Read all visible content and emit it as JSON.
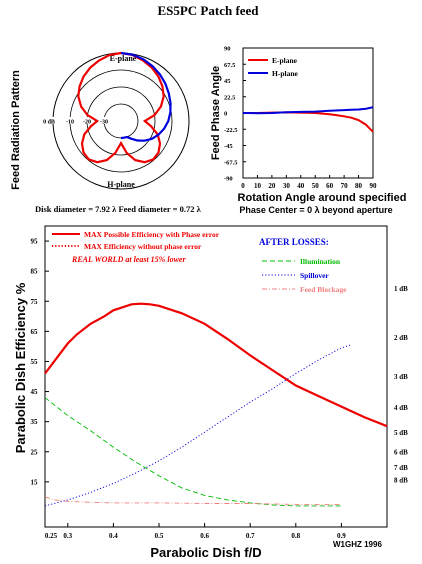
{
  "page": {
    "title": "ES5PC Patch feed",
    "credit": "W1GHZ 1996",
    "dish_line": "Disk diameter = 7.92 λ Feed diameter = 0.72 λ"
  },
  "colors": {
    "red": "#ee0000",
    "blue": "#0000dd",
    "green": "#00bb00",
    "pink": "#f08080",
    "black": "#000000"
  },
  "chart_data": [
    {
      "type": "polar",
      "ylabel": "Feed Radiation Pattern",
      "ring_labels": [
        "0 dB",
        "-10",
        "-20",
        "-30"
      ],
      "ring_levels_db": [
        0,
        -10,
        -20,
        -30
      ],
      "series": [
        {
          "name": "E-plane",
          "color": "red",
          "points": [
            [
              0,
              0
            ],
            [
              10,
              -0.6
            ],
            [
              20,
              -2.1
            ],
            [
              30,
              -3.8
            ],
            [
              40,
              -5.8
            ],
            [
              50,
              -8.2
            ],
            [
              60,
              -11.0
            ],
            [
              70,
              -15.0
            ],
            [
              80,
              -20.0
            ],
            [
              90,
              -26.0
            ],
            [
              100,
              -22.0
            ],
            [
              110,
              -17.0
            ],
            [
              120,
              -13.5
            ],
            [
              130,
              -11.2
            ],
            [
              140,
              -10.5
            ],
            [
              150,
              -12.0
            ],
            [
              160,
              -15.5
            ],
            [
              170,
              -21.0
            ],
            [
              180,
              -27.0
            ]
          ]
        },
        {
          "name": "H-plane",
          "color": "blue",
          "points": [
            [
              0,
              0
            ],
            [
              10,
              -0.4
            ],
            [
              20,
              -1.4
            ],
            [
              30,
              -2.8
            ],
            [
              40,
              -4.3
            ],
            [
              50,
              -5.9
            ],
            [
              60,
              -7.5
            ],
            [
              70,
              -9.0
            ],
            [
              80,
              -10.5
            ],
            [
              90,
              -12.2
            ],
            [
              100,
              -14.2
            ],
            [
              110,
              -16.5
            ],
            [
              120,
              -19.0
            ],
            [
              130,
              -22.0
            ],
            [
              140,
              -25.0
            ],
            [
              150,
              -28.0
            ],
            [
              160,
              -30.0
            ],
            [
              170,
              -30.0
            ],
            [
              180,
              -30.0
            ]
          ]
        }
      ]
    },
    {
      "type": "line",
      "ylabel": "Feed Phase Angle",
      "xlabel": "Rotation Angle around specified",
      "xlabel2": "Phase Center = 0 λ beyond aperture",
      "xlim": [
        0,
        90
      ],
      "ylim": [
        -90,
        90
      ],
      "xticks": [
        0,
        10,
        20,
        30,
        40,
        50,
        60,
        70,
        80,
        90
      ],
      "yticks": [
        90,
        67.5,
        45,
        22.5,
        0,
        -22.5,
        -45,
        -67.5,
        -90
      ],
      "yticklabels": [
        "90",
        "67.5",
        "45",
        "22.5",
        "0",
        "-22.5",
        "-45",
        "-67.5",
        "-90"
      ],
      "legend": [
        "E-plane",
        "H-plane"
      ],
      "series": [
        {
          "name": "E-plane",
          "color": "red",
          "points": [
            [
              0,
              0
            ],
            [
              10,
              0
            ],
            [
              20,
              0.5
            ],
            [
              30,
              0.8
            ],
            [
              40,
              0.5
            ],
            [
              50,
              0
            ],
            [
              55,
              -0.8
            ],
            [
              60,
              -1.8
            ],
            [
              65,
              -3
            ],
            [
              70,
              -4.5
            ],
            [
              75,
              -6.5
            ],
            [
              80,
              -10
            ],
            [
              85,
              -16
            ],
            [
              88,
              -22
            ],
            [
              90,
              -26
            ]
          ]
        },
        {
          "name": "H-plane",
          "color": "blue",
          "points": [
            [
              0,
              0
            ],
            [
              10,
              -0.3
            ],
            [
              20,
              0
            ],
            [
              30,
              1
            ],
            [
              40,
              1.5
            ],
            [
              50,
              2
            ],
            [
              60,
              3
            ],
            [
              70,
              4
            ],
            [
              75,
              4.5
            ],
            [
              80,
              4.8
            ],
            [
              85,
              6
            ],
            [
              88,
              7
            ],
            [
              90,
              8
            ]
          ]
        }
      ]
    },
    {
      "type": "line",
      "ylabel": "Parabolic Dish Efficiency %",
      "xlabel": "Parabolic Dish f/D",
      "xlim": [
        0.25,
        1.0
      ],
      "ylim": [
        0,
        100
      ],
      "xticks": [
        0.25,
        0.3,
        0.4,
        0.5,
        0.6,
        0.7,
        0.8,
        0.9
      ],
      "xticklabels": [
        "0.25",
        "0.3",
        "0.4",
        "0.5",
        "0.6",
        "0.7",
        "0.8",
        "0.9"
      ],
      "yticks": [
        15,
        25,
        35,
        45,
        55,
        65,
        75,
        85,
        95
      ],
      "right_scale": [
        {
          "label": "1 dB",
          "value": 79.4
        },
        {
          "label": "2 dB",
          "value": 63.1
        },
        {
          "label": "3 dB",
          "value": 50.1
        },
        {
          "label": "4 dB",
          "value": 39.8
        },
        {
          "label": "5 dB",
          "value": 31.6
        },
        {
          "label": "6 dB",
          "value": 25.1
        },
        {
          "label": "7 dB",
          "value": 20.0
        },
        {
          "label": "8 dB",
          "value": 15.8
        }
      ],
      "legend_main": [
        {
          "label": "MAX Possible Efficiency with Phase error",
          "color": "red",
          "dash": "solid"
        },
        {
          "label": "MAX Efficiency without phase error",
          "color": "red",
          "dash": "dotted"
        }
      ],
      "note": "REAL WORLD at least 15% lower",
      "after_losses": "AFTER LOSSES:",
      "legend_losses": [
        {
          "label": "Illumination",
          "color": "green",
          "dash": "dashed"
        },
        {
          "label": "Spillover",
          "color": "blue",
          "dash": "dotted"
        },
        {
          "label": "Feed Blockage",
          "color": "pink",
          "dash": "dashdot"
        }
      ],
      "series": [
        {
          "name": "MAX Possible Efficiency with Phase error",
          "color": "red",
          "dash": "solid",
          "points": [
            [
              0.25,
              51
            ],
            [
              0.28,
              57
            ],
            [
              0.3,
              61
            ],
            [
              0.32,
              64
            ],
            [
              0.35,
              67.5
            ],
            [
              0.38,
              70
            ],
            [
              0.4,
              72
            ],
            [
              0.42,
              73
            ],
            [
              0.44,
              74
            ],
            [
              0.46,
              74.2
            ],
            [
              0.48,
              74
            ],
            [
              0.5,
              73.5
            ],
            [
              0.55,
              71
            ],
            [
              0.6,
              67.5
            ],
            [
              0.65,
              62.5
            ],
            [
              0.7,
              57
            ],
            [
              0.75,
              52
            ],
            [
              0.8,
              47
            ],
            [
              0.85,
              43.5
            ],
            [
              0.9,
              40
            ],
            [
              0.95,
              36.5
            ],
            [
              1.0,
              33.5
            ]
          ]
        },
        {
          "name": "Illumination",
          "color": "green",
          "dash": "dashed",
          "points": [
            [
              0.25,
              43
            ],
            [
              0.3,
              37
            ],
            [
              0.35,
              32
            ],
            [
              0.4,
              26.5
            ],
            [
              0.45,
              21.5
            ],
            [
              0.5,
              17
            ],
            [
              0.55,
              13
            ],
            [
              0.6,
              10.5
            ],
            [
              0.65,
              9
            ],
            [
              0.7,
              8
            ],
            [
              0.75,
              7.3
            ],
            [
              0.8,
              7
            ],
            [
              0.85,
              7
            ],
            [
              0.9,
              7
            ]
          ]
        },
        {
          "name": "Spillover",
          "color": "blue",
          "dash": "dotted",
          "points": [
            [
              0.25,
              7
            ],
            [
              0.3,
              9
            ],
            [
              0.35,
              11.5
            ],
            [
              0.4,
              14.5
            ],
            [
              0.45,
              18
            ],
            [
              0.5,
              22
            ],
            [
              0.55,
              26.5
            ],
            [
              0.6,
              31.5
            ],
            [
              0.65,
              36.5
            ],
            [
              0.7,
              41.5
            ],
            [
              0.75,
              46
            ],
            [
              0.8,
              51
            ],
            [
              0.85,
              55.5
            ],
            [
              0.9,
              59.5
            ],
            [
              0.92,
              60.5
            ]
          ]
        },
        {
          "name": "Feed Blockage",
          "color": "pink",
          "dash": "dashdot",
          "points": [
            [
              0.25,
              10
            ],
            [
              0.27,
              9
            ],
            [
              0.3,
              8.5
            ],
            [
              0.35,
              8.2
            ],
            [
              0.4,
              8
            ],
            [
              0.5,
              8
            ],
            [
              0.6,
              7.8
            ],
            [
              0.7,
              7.8
            ],
            [
              0.8,
              7.5
            ],
            [
              0.9,
              7.5
            ]
          ]
        }
      ]
    }
  ],
  "polar_labels": {
    "e_plane": "E-plane",
    "h_plane": "H-plane"
  }
}
